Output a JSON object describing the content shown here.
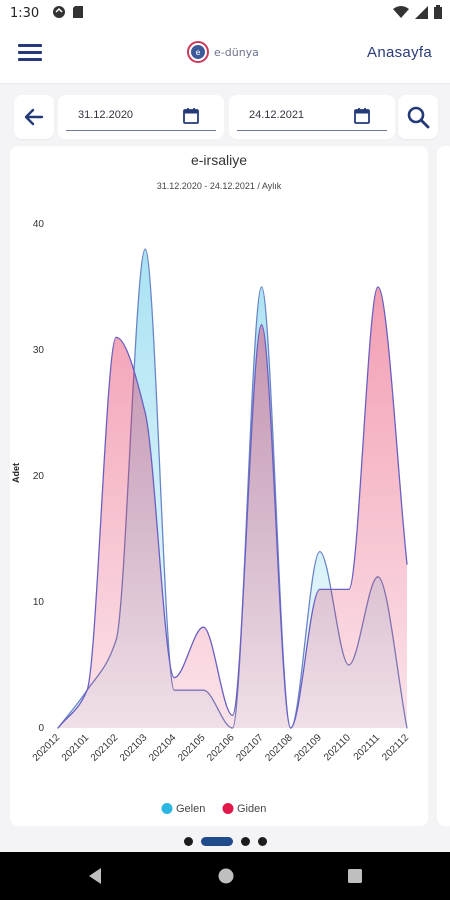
{
  "status": {
    "time": "1:30"
  },
  "header": {
    "logo_text": "e-dünya",
    "home_label": "Anasayfa"
  },
  "filter": {
    "start_date": "31.12.2020",
    "end_date": "24.12.2021"
  },
  "colors": {
    "gelen": "#29b6e0",
    "giden": "#e0194a",
    "primary": "#243a78"
  },
  "icons": {
    "back": "arrow-left-icon",
    "calendar": "calendar-icon",
    "search": "search-icon",
    "menu": "hamburger-menu-icon"
  },
  "chart_data": {
    "type": "area",
    "title": "e-irsaliye",
    "subtitle": "31.12.2020 - 24.12.2021 / Aylık",
    "ylabel": "Adet",
    "xlabel": "",
    "ylim": [
      0,
      40
    ],
    "yticks": [
      0,
      10,
      20,
      30,
      40
    ],
    "categories": [
      "202012",
      "202101",
      "202102",
      "202103",
      "202104",
      "202105",
      "202106",
      "202107",
      "202108",
      "202109",
      "202110",
      "202111",
      "202112"
    ],
    "series": [
      {
        "name": "Gelen",
        "color": "#29b6e0",
        "values": [
          0,
          3,
          7,
          38,
          3,
          3,
          0,
          35,
          0,
          14,
          5,
          12,
          0
        ]
      },
      {
        "name": "Giden",
        "color": "#e0194a",
        "values": [
          0,
          3,
          31,
          25,
          4,
          8,
          1,
          32,
          0,
          11,
          11,
          35,
          13
        ]
      }
    ],
    "legend_position": "bottom",
    "grid": false
  },
  "pager": {
    "count": 4,
    "active": 1
  }
}
